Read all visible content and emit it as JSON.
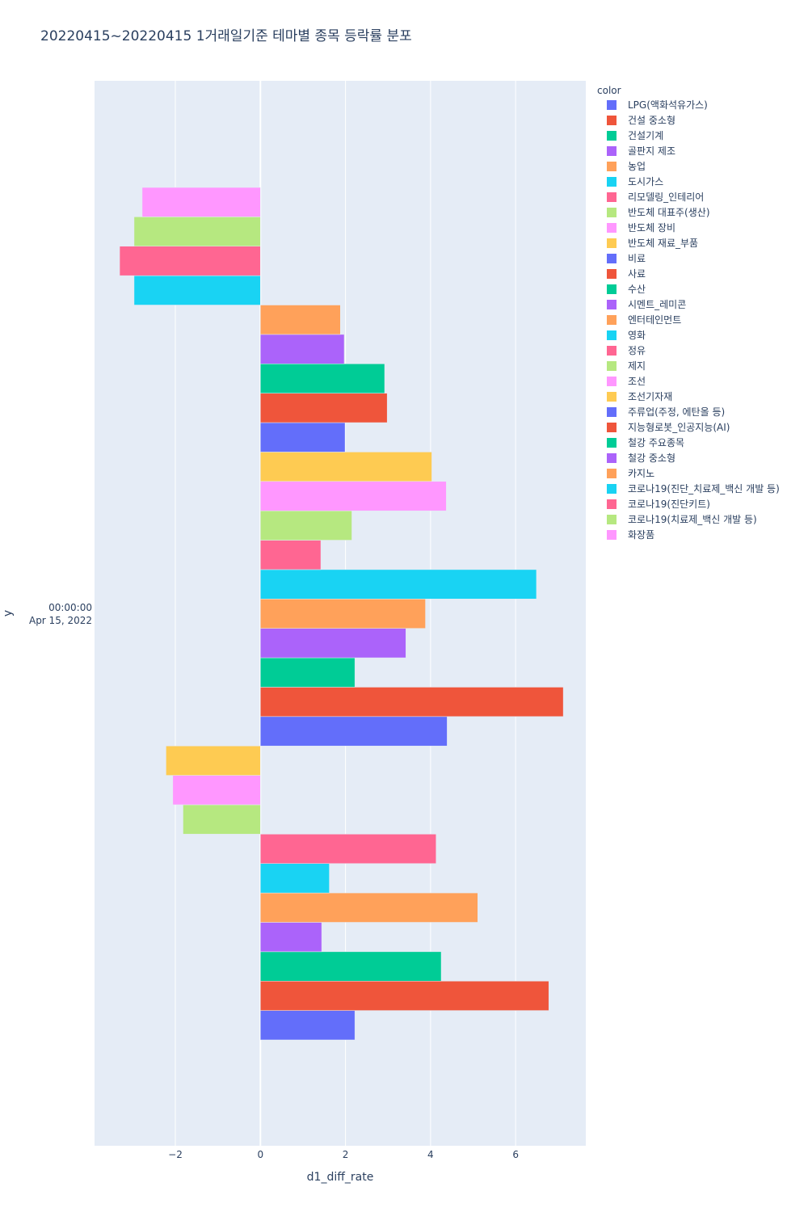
{
  "chart_data": {
    "type": "bar",
    "orientation": "horizontal",
    "barmode": "group",
    "title": "20220415~20220415 1거래일기준 테마별 종목 등락률 분포",
    "xlabel": "d1_diff_rate",
    "ylabel": "y",
    "y_category_label": [
      "00:00:00",
      "Apr 15, 2022"
    ],
    "xlim": [
      -3.9,
      7.65
    ],
    "x_ticks": [
      -2,
      0,
      2,
      4,
      6
    ],
    "x_tick_labels": [
      "−2",
      "0",
      "2",
      "4",
      "6"
    ],
    "grid": true,
    "legend_title": "color",
    "legend_position": "top-right",
    "series": [
      {
        "name": "LPG(액화석유가스)",
        "color": "#636efa",
        "value": 2.22
      },
      {
        "name": "건설 중소형",
        "color": "#EF553B",
        "value": 6.78
      },
      {
        "name": "건설기계",
        "color": "#00cc96",
        "value": 4.25
      },
      {
        "name": "골판지 제조",
        "color": "#ab63fa",
        "value": 1.44
      },
      {
        "name": "농업",
        "color": "#FFA15A",
        "value": 5.11
      },
      {
        "name": "도시가스",
        "color": "#19d3f3",
        "value": 1.62
      },
      {
        "name": "리모델링_인테리어",
        "color": "#FF6692",
        "value": 4.13
      },
      {
        "name": "반도체 대표주(생산)",
        "color": "#B6E880",
        "value": -1.82
      },
      {
        "name": "반도체 장비",
        "color": "#FF97FF",
        "value": -2.06
      },
      {
        "name": "반도체 재료_부품",
        "color": "#FECB52",
        "value": -2.22
      },
      {
        "name": "비료",
        "color": "#636efa",
        "value": 4.39
      },
      {
        "name": "사료",
        "color": "#EF553B",
        "value": 7.12
      },
      {
        "name": "수산",
        "color": "#00cc96",
        "value": 2.22
      },
      {
        "name": "시멘트_레미콘",
        "color": "#ab63fa",
        "value": 3.42
      },
      {
        "name": "엔터테인먼트",
        "color": "#FFA15A",
        "value": 3.88
      },
      {
        "name": "영화",
        "color": "#19d3f3",
        "value": 6.49
      },
      {
        "name": "정유",
        "color": "#FF6692",
        "value": 1.42
      },
      {
        "name": "제지",
        "color": "#B6E880",
        "value": 2.15
      },
      {
        "name": "조선",
        "color": "#FF97FF",
        "value": 4.37
      },
      {
        "name": "조선기자재",
        "color": "#FECB52",
        "value": 4.03
      },
      {
        "name": "주류업(주정, 에탄올 등)",
        "color": "#636efa",
        "value": 1.99
      },
      {
        "name": "지능형로봇_인공지능(AI)",
        "color": "#EF553B",
        "value": 2.98
      },
      {
        "name": "철강 주요종목",
        "color": "#00cc96",
        "value": 2.92
      },
      {
        "name": "철강 중소형",
        "color": "#ab63fa",
        "value": 1.97
      },
      {
        "name": "카지노",
        "color": "#FFA15A",
        "value": 1.88
      },
      {
        "name": "코로나19(진단_치료제_백신 개발 등)",
        "color": "#19d3f3",
        "value": -2.97
      },
      {
        "name": "코로나19(진단키트)",
        "color": "#FF6692",
        "value": -3.31
      },
      {
        "name": "코로나19(치료제_백신 개발 등)",
        "color": "#B6E880",
        "value": -2.97
      },
      {
        "name": "화장품",
        "color": "#FF97FF",
        "value": -2.78
      }
    ]
  }
}
